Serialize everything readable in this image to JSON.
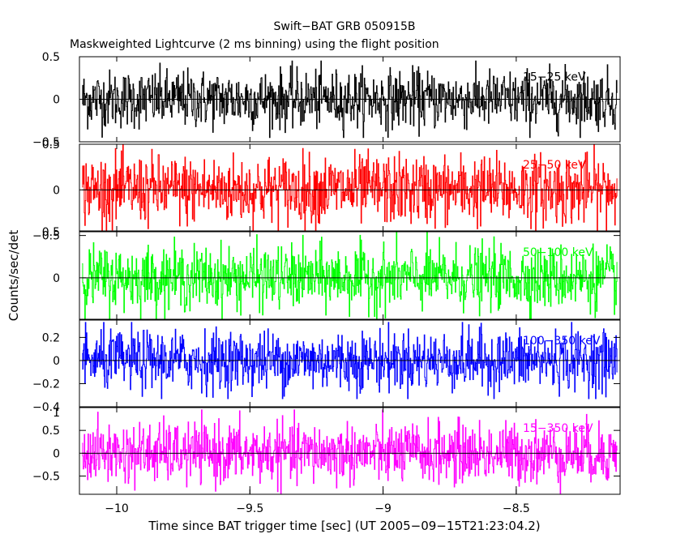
{
  "title": "Swift−BAT GRB 050915B",
  "subtitle": "Maskweighted Lightcurve (2 ms binning) using the flight position",
  "xlabel": "Time since BAT trigger time [sec] (UT 2005−09−15T21:23:04.2)",
  "ylabel": "Counts/sec/det",
  "chart_data": {
    "type": "line",
    "title": "Swift−BAT GRB 050915B",
    "subtitle": "Maskweighted Lightcurve (2 ms binning) using the flight position",
    "xlabel": "Time since BAT trigger time [sec] (UT 2005−09−15T21:23:04.2)",
    "ylabel": "Counts/sec/det",
    "xlim": [
      -10.14,
      -8.11
    ],
    "x_ticks": [
      -10,
      -9.5,
      -9,
      -8.5
    ],
    "x_tick_labels": [
      "−10",
      "−9.5",
      "−9",
      "−8.5"
    ],
    "x_range_data": [
      -10.13,
      -8.12
    ],
    "binning_sec": 0.002,
    "panels": [
      {
        "name": "15−25 keV",
        "color": "#000000",
        "ylim": [
          -0.5,
          0.5
        ],
        "y_ticks": [
          -0.5,
          0,
          0.5
        ],
        "y_tick_labels": [
          "−0.5",
          "0",
          "0.5"
        ],
        "noise_amplitude": 0.17,
        "envelope_max": 0.45
      },
      {
        "name": "25−50 keV",
        "color": "#ff0000",
        "ylim": [
          -0.45,
          0.5
        ],
        "y_ticks": [
          -0.5,
          0,
          0.5
        ],
        "y_tick_labels": [
          "−0.5",
          "0",
          "0.5"
        ],
        "noise_amplitude": 0.19,
        "envelope_max": 0.5
      },
      {
        "name": "50−100 keV",
        "color": "#00ff00",
        "ylim": [
          -0.45,
          0.5
        ],
        "y_ticks": [
          0,
          0.5
        ],
        "y_tick_labels": [
          "0",
          "0.5"
        ],
        "noise_amplitude": 0.17,
        "envelope_max": 0.5
      },
      {
        "name": "100−350 keV",
        "color": "#0000ff",
        "ylim": [
          -0.4,
          0.35
        ],
        "y_ticks": [
          -0.4,
          -0.2,
          0,
          0.2
        ],
        "y_tick_labels": [
          "−0.4",
          "−0.2",
          "0",
          "0.2"
        ],
        "noise_amplitude": 0.13,
        "envelope_max": 0.33
      },
      {
        "name": "15−350 keV",
        "color": "#ff00ff",
        "ylim": [
          -0.9,
          1.0
        ],
        "y_ticks": [
          -0.5,
          0,
          0.5
        ],
        "y_tick_labels": [
          "−0.5",
          "0",
          "0.5"
        ],
        "extra_tick_label": "1",
        "noise_amplitude": 0.33,
        "envelope_max": 0.95
      }
    ]
  }
}
